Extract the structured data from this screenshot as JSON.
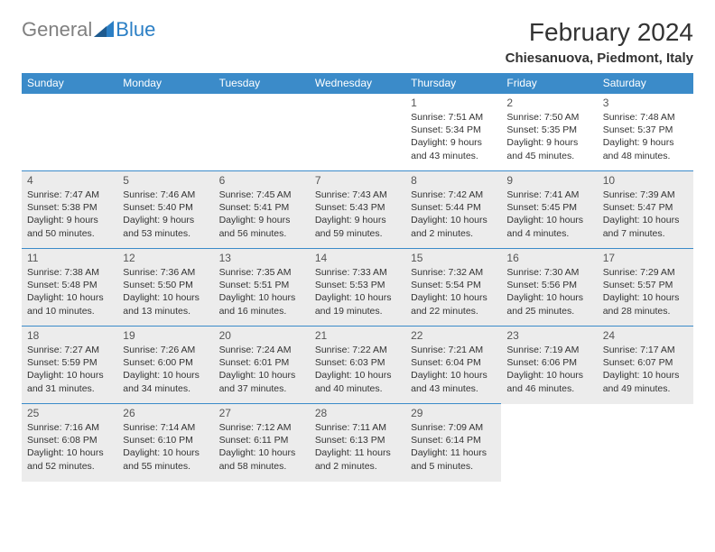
{
  "logo": {
    "general": "General",
    "blue": "Blue"
  },
  "title": "February 2024",
  "location": "Chiesanuova, Piedmont, Italy",
  "colors": {
    "header_bg": "#3b8bc9",
    "header_text": "#ffffff",
    "row_alt_bg": "#ececec",
    "row_plain_bg": "#ffffff",
    "border": "#3b8bc9",
    "logo_blue": "#2b7fc5",
    "logo_gray": "#808080",
    "text": "#333333"
  },
  "typography": {
    "title_fontsize": 28,
    "location_fontsize": 15,
    "dayheader_fontsize": 12,
    "cell_fontsize": 10.5,
    "font_family": "Arial"
  },
  "dayHeaders": [
    "Sunday",
    "Monday",
    "Tuesday",
    "Wednesday",
    "Thursday",
    "Friday",
    "Saturday"
  ],
  "weeks": [
    {
      "alt": false,
      "cells": [
        null,
        null,
        null,
        null,
        {
          "num": "1",
          "sunrise": "Sunrise: 7:51 AM",
          "sunset": "Sunset: 5:34 PM",
          "d1": "Daylight: 9 hours",
          "d2": "and 43 minutes."
        },
        {
          "num": "2",
          "sunrise": "Sunrise: 7:50 AM",
          "sunset": "Sunset: 5:35 PM",
          "d1": "Daylight: 9 hours",
          "d2": "and 45 minutes."
        },
        {
          "num": "3",
          "sunrise": "Sunrise: 7:48 AM",
          "sunset": "Sunset: 5:37 PM",
          "d1": "Daylight: 9 hours",
          "d2": "and 48 minutes."
        }
      ]
    },
    {
      "alt": true,
      "cells": [
        {
          "num": "4",
          "sunrise": "Sunrise: 7:47 AM",
          "sunset": "Sunset: 5:38 PM",
          "d1": "Daylight: 9 hours",
          "d2": "and 50 minutes."
        },
        {
          "num": "5",
          "sunrise": "Sunrise: 7:46 AM",
          "sunset": "Sunset: 5:40 PM",
          "d1": "Daylight: 9 hours",
          "d2": "and 53 minutes."
        },
        {
          "num": "6",
          "sunrise": "Sunrise: 7:45 AM",
          "sunset": "Sunset: 5:41 PM",
          "d1": "Daylight: 9 hours",
          "d2": "and 56 minutes."
        },
        {
          "num": "7",
          "sunrise": "Sunrise: 7:43 AM",
          "sunset": "Sunset: 5:43 PM",
          "d1": "Daylight: 9 hours",
          "d2": "and 59 minutes."
        },
        {
          "num": "8",
          "sunrise": "Sunrise: 7:42 AM",
          "sunset": "Sunset: 5:44 PM",
          "d1": "Daylight: 10 hours",
          "d2": "and 2 minutes."
        },
        {
          "num": "9",
          "sunrise": "Sunrise: 7:41 AM",
          "sunset": "Sunset: 5:45 PM",
          "d1": "Daylight: 10 hours",
          "d2": "and 4 minutes."
        },
        {
          "num": "10",
          "sunrise": "Sunrise: 7:39 AM",
          "sunset": "Sunset: 5:47 PM",
          "d1": "Daylight: 10 hours",
          "d2": "and 7 minutes."
        }
      ]
    },
    {
      "alt": true,
      "cells": [
        {
          "num": "11",
          "sunrise": "Sunrise: 7:38 AM",
          "sunset": "Sunset: 5:48 PM",
          "d1": "Daylight: 10 hours",
          "d2": "and 10 minutes."
        },
        {
          "num": "12",
          "sunrise": "Sunrise: 7:36 AM",
          "sunset": "Sunset: 5:50 PM",
          "d1": "Daylight: 10 hours",
          "d2": "and 13 minutes."
        },
        {
          "num": "13",
          "sunrise": "Sunrise: 7:35 AM",
          "sunset": "Sunset: 5:51 PM",
          "d1": "Daylight: 10 hours",
          "d2": "and 16 minutes."
        },
        {
          "num": "14",
          "sunrise": "Sunrise: 7:33 AM",
          "sunset": "Sunset: 5:53 PM",
          "d1": "Daylight: 10 hours",
          "d2": "and 19 minutes."
        },
        {
          "num": "15",
          "sunrise": "Sunrise: 7:32 AM",
          "sunset": "Sunset: 5:54 PM",
          "d1": "Daylight: 10 hours",
          "d2": "and 22 minutes."
        },
        {
          "num": "16",
          "sunrise": "Sunrise: 7:30 AM",
          "sunset": "Sunset: 5:56 PM",
          "d1": "Daylight: 10 hours",
          "d2": "and 25 minutes."
        },
        {
          "num": "17",
          "sunrise": "Sunrise: 7:29 AM",
          "sunset": "Sunset: 5:57 PM",
          "d1": "Daylight: 10 hours",
          "d2": "and 28 minutes."
        }
      ]
    },
    {
      "alt": true,
      "cells": [
        {
          "num": "18",
          "sunrise": "Sunrise: 7:27 AM",
          "sunset": "Sunset: 5:59 PM",
          "d1": "Daylight: 10 hours",
          "d2": "and 31 minutes."
        },
        {
          "num": "19",
          "sunrise": "Sunrise: 7:26 AM",
          "sunset": "Sunset: 6:00 PM",
          "d1": "Daylight: 10 hours",
          "d2": "and 34 minutes."
        },
        {
          "num": "20",
          "sunrise": "Sunrise: 7:24 AM",
          "sunset": "Sunset: 6:01 PM",
          "d1": "Daylight: 10 hours",
          "d2": "and 37 minutes."
        },
        {
          "num": "21",
          "sunrise": "Sunrise: 7:22 AM",
          "sunset": "Sunset: 6:03 PM",
          "d1": "Daylight: 10 hours",
          "d2": "and 40 minutes."
        },
        {
          "num": "22",
          "sunrise": "Sunrise: 7:21 AM",
          "sunset": "Sunset: 6:04 PM",
          "d1": "Daylight: 10 hours",
          "d2": "and 43 minutes."
        },
        {
          "num": "23",
          "sunrise": "Sunrise: 7:19 AM",
          "sunset": "Sunset: 6:06 PM",
          "d1": "Daylight: 10 hours",
          "d2": "and 46 minutes."
        },
        {
          "num": "24",
          "sunrise": "Sunrise: 7:17 AM",
          "sunset": "Sunset: 6:07 PM",
          "d1": "Daylight: 10 hours",
          "d2": "and 49 minutes."
        }
      ]
    },
    {
      "alt": true,
      "cells": [
        {
          "num": "25",
          "sunrise": "Sunrise: 7:16 AM",
          "sunset": "Sunset: 6:08 PM",
          "d1": "Daylight: 10 hours",
          "d2": "and 52 minutes."
        },
        {
          "num": "26",
          "sunrise": "Sunrise: 7:14 AM",
          "sunset": "Sunset: 6:10 PM",
          "d1": "Daylight: 10 hours",
          "d2": "and 55 minutes."
        },
        {
          "num": "27",
          "sunrise": "Sunrise: 7:12 AM",
          "sunset": "Sunset: 6:11 PM",
          "d1": "Daylight: 10 hours",
          "d2": "and 58 minutes."
        },
        {
          "num": "28",
          "sunrise": "Sunrise: 7:11 AM",
          "sunset": "Sunset: 6:13 PM",
          "d1": "Daylight: 11 hours",
          "d2": "and 2 minutes."
        },
        {
          "num": "29",
          "sunrise": "Sunrise: 7:09 AM",
          "sunset": "Sunset: 6:14 PM",
          "d1": "Daylight: 11 hours",
          "d2": "and 5 minutes."
        },
        null,
        null
      ]
    }
  ]
}
